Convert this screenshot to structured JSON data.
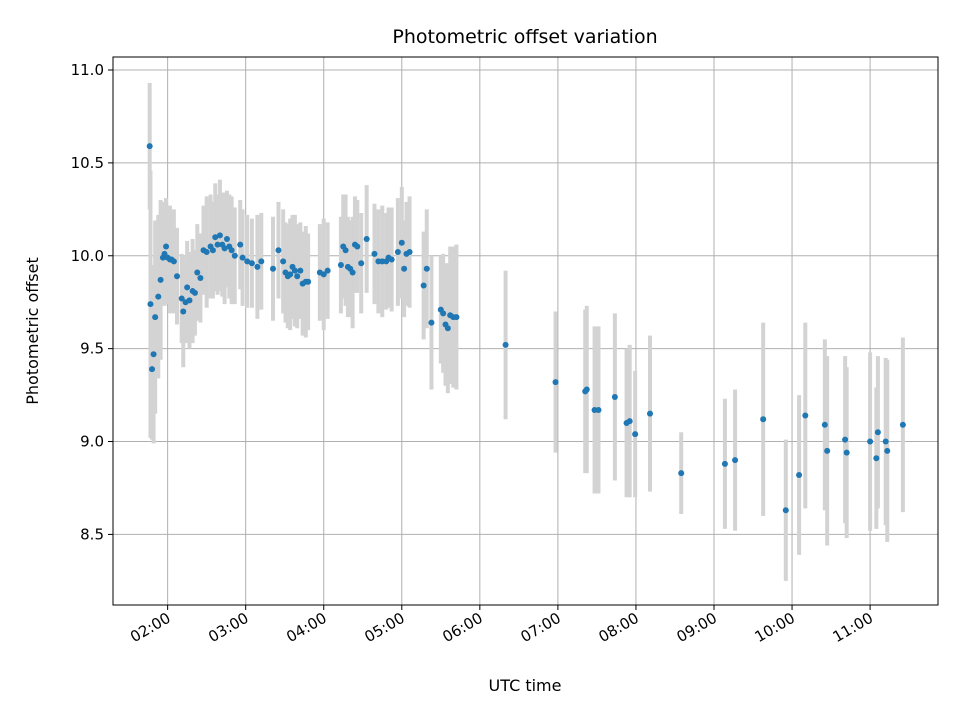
{
  "chart_data": {
    "type": "scatter",
    "title": "Photometric offset variation",
    "xlabel": "UTC time",
    "ylabel": "Photometric offset",
    "x_unit": "hours (UTC)",
    "xlim": [
      1.3,
      11.87
    ],
    "ylim": [
      8.12,
      11.07
    ],
    "grid": true,
    "x_ticks": [
      {
        "value": 2,
        "label": "02:00"
      },
      {
        "value": 3,
        "label": "03:00"
      },
      {
        "value": 4,
        "label": "04:00"
      },
      {
        "value": 5,
        "label": "05:00"
      },
      {
        "value": 6,
        "label": "06:00"
      },
      {
        "value": 7,
        "label": "07:00"
      },
      {
        "value": 8,
        "label": "08:00"
      },
      {
        "value": 9,
        "label": "09:00"
      },
      {
        "value": 10,
        "label": "10:00"
      },
      {
        "value": 11,
        "label": "11:00"
      }
    ],
    "y_ticks": [
      {
        "value": 8.5,
        "label": "8.5"
      },
      {
        "value": 9.0,
        "label": "9.0"
      },
      {
        "value": 9.5,
        "label": "9.5"
      },
      {
        "value": 10.0,
        "label": "10.0"
      },
      {
        "value": 10.5,
        "label": "10.5"
      },
      {
        "value": 11.0,
        "label": "11.0"
      }
    ],
    "colors": {
      "point": "#1f77b4",
      "errorbar": "#d3d3d3",
      "grid": "#b0b0b0"
    },
    "points": [
      [
        1.77,
        10.59,
        0.34
      ],
      [
        1.78,
        9.74,
        0.72
      ],
      [
        1.8,
        9.39,
        0.38
      ],
      [
        1.82,
        9.47,
        0.48
      ],
      [
        1.84,
        9.67,
        0.52
      ],
      [
        1.88,
        9.78,
        0.44
      ],
      [
        1.91,
        9.87,
        0.43
      ],
      [
        1.94,
        9.99,
        0.24
      ],
      [
        1.96,
        10.01,
        0.28
      ],
      [
        1.98,
        10.05,
        0.26
      ],
      [
        2.0,
        9.99,
        0.25
      ],
      [
        2.03,
        9.98,
        0.29
      ],
      [
        2.05,
        9.98,
        0.25
      ],
      [
        2.08,
        9.97,
        0.28
      ],
      [
        2.12,
        9.89,
        0.26
      ],
      [
        2.18,
        9.77,
        0.24
      ],
      [
        2.2,
        9.7,
        0.3
      ],
      [
        2.23,
        9.75,
        0.22
      ],
      [
        2.25,
        9.83,
        0.25
      ],
      [
        2.28,
        9.76,
        0.26
      ],
      [
        2.32,
        9.81,
        0.28
      ],
      [
        2.35,
        9.8,
        0.23
      ],
      [
        2.38,
        9.91,
        0.26
      ],
      [
        2.42,
        9.88,
        0.24
      ],
      [
        2.46,
        10.03,
        0.24
      ],
      [
        2.5,
        10.02,
        0.3
      ],
      [
        2.55,
        10.05,
        0.28
      ],
      [
        2.58,
        10.03,
        0.26
      ],
      [
        2.61,
        10.1,
        0.29
      ],
      [
        2.64,
        10.06,
        0.27
      ],
      [
        2.67,
        10.11,
        0.3
      ],
      [
        2.7,
        10.06,
        0.28
      ],
      [
        2.73,
        10.04,
        0.3
      ],
      [
        2.76,
        10.09,
        0.26
      ],
      [
        2.79,
        10.05,
        0.28
      ],
      [
        2.82,
        10.03,
        0.29
      ],
      [
        2.86,
        10.0,
        0.26
      ],
      [
        2.93,
        10.06,
        0.24
      ],
      [
        2.96,
        9.99,
        0.26
      ],
      [
        3.02,
        9.97,
        0.25
      ],
      [
        3.08,
        9.96,
        0.24
      ],
      [
        3.15,
        9.94,
        0.28
      ],
      [
        3.2,
        9.97,
        0.26
      ],
      [
        3.35,
        9.93,
        0.28
      ],
      [
        3.42,
        10.03,
        0.26
      ],
      [
        3.48,
        9.97,
        0.28
      ],
      [
        3.51,
        9.91,
        0.27
      ],
      [
        3.54,
        9.89,
        0.28
      ],
      [
        3.57,
        9.9,
        0.3
      ],
      [
        3.6,
        9.94,
        0.28
      ],
      [
        3.63,
        9.92,
        0.3
      ],
      [
        3.66,
        9.89,
        0.28
      ],
      [
        3.7,
        9.92,
        0.26
      ],
      [
        3.73,
        9.85,
        0.28
      ],
      [
        3.77,
        9.86,
        0.3
      ],
      [
        3.8,
        9.86,
        0.26
      ],
      [
        3.95,
        9.91,
        0.26
      ],
      [
        4.0,
        9.9,
        0.3
      ],
      [
        4.05,
        9.92,
        0.26
      ],
      [
        4.22,
        9.95,
        0.26
      ],
      [
        4.25,
        10.05,
        0.28
      ],
      [
        4.28,
        10.03,
        0.3
      ],
      [
        4.31,
        9.94,
        0.27
      ],
      [
        4.34,
        9.93,
        0.26
      ],
      [
        4.37,
        9.91,
        0.3
      ],
      [
        4.4,
        10.06,
        0.26
      ],
      [
        4.43,
        10.05,
        0.25
      ],
      [
        4.48,
        9.96,
        0.27
      ],
      [
        4.55,
        10.09,
        0.29
      ],
      [
        4.65,
        10.01,
        0.27
      ],
      [
        4.7,
        9.97,
        0.28
      ],
      [
        4.75,
        9.97,
        0.3
      ],
      [
        4.8,
        9.97,
        0.26
      ],
      [
        4.83,
        9.99,
        0.27
      ],
      [
        4.87,
        9.98,
        0.28
      ],
      [
        4.95,
        10.02,
        0.29
      ],
      [
        5.0,
        10.07,
        0.3
      ],
      [
        5.03,
        9.93,
        0.26
      ],
      [
        5.06,
        10.01,
        0.28
      ],
      [
        5.1,
        10.02,
        0.3
      ],
      [
        5.28,
        9.84,
        0.29
      ],
      [
        5.32,
        9.93,
        0.32
      ],
      [
        5.38,
        9.64,
        0.36
      ],
      [
        5.5,
        9.71,
        0.29
      ],
      [
        5.53,
        9.69,
        0.32
      ],
      [
        5.56,
        9.63,
        0.33
      ],
      [
        5.59,
        9.61,
        0.35
      ],
      [
        5.62,
        9.68,
        0.37
      ],
      [
        5.66,
        9.67,
        0.38
      ],
      [
        5.7,
        9.67,
        0.39
      ],
      [
        6.33,
        9.52,
        0.4
      ],
      [
        6.97,
        9.32,
        0.38
      ],
      [
        7.35,
        9.27,
        0.44
      ],
      [
        7.37,
        9.28,
        0.45
      ],
      [
        7.47,
        9.17,
        0.45
      ],
      [
        7.52,
        9.17,
        0.45
      ],
      [
        7.73,
        9.24,
        0.45
      ],
      [
        7.88,
        9.1,
        0.4
      ],
      [
        7.92,
        9.11,
        0.41
      ],
      [
        7.99,
        9.04,
        0.34
      ],
      [
        8.18,
        9.15,
        0.42
      ],
      [
        8.58,
        8.83,
        0.22
      ],
      [
        9.14,
        8.88,
        0.35
      ],
      [
        9.27,
        8.9,
        0.38
      ],
      [
        9.63,
        9.12,
        0.52
      ],
      [
        9.92,
        8.63,
        0.38
      ],
      [
        10.09,
        8.82,
        0.43
      ],
      [
        10.17,
        9.14,
        0.5
      ],
      [
        10.42,
        9.09,
        0.46
      ],
      [
        10.45,
        8.95,
        0.51
      ],
      [
        10.68,
        9.01,
        0.45
      ],
      [
        10.7,
        8.94,
        0.46
      ],
      [
        11.0,
        9.0,
        0.48
      ],
      [
        11.08,
        8.91,
        0.38
      ],
      [
        11.1,
        9.05,
        0.41
      ],
      [
        11.2,
        9.0,
        0.45
      ],
      [
        11.22,
        8.95,
        0.49
      ],
      [
        11.42,
        9.09,
        0.47
      ]
    ]
  }
}
